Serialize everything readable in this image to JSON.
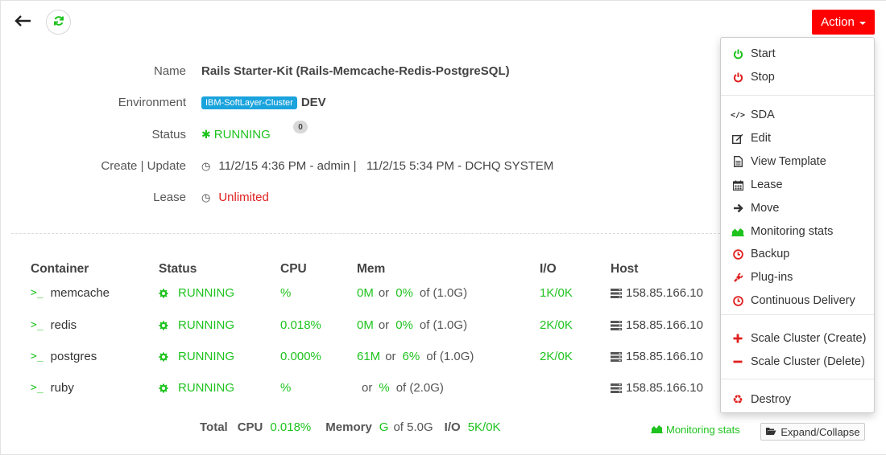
{
  "toolbar": {
    "action_label": "Action"
  },
  "details": {
    "name_label": "Name",
    "name_value": "Rails Starter-Kit (Rails-Memcache-Redis-PostgreSQL)",
    "environment_label": "Environment",
    "environment_tag": "IBM-SoftLayer-Cluster",
    "environment_value": "DEV",
    "status_label": "Status",
    "status_value": "RUNNING",
    "status_badge": "0",
    "create_update_label": "Create | Update",
    "create_update_value": "11/2/15 4:36 PM - admin |   11/2/15 5:34 PM - DCHQ SYSTEM",
    "lease_label": "Lease",
    "lease_value": "Unlimited"
  },
  "table": {
    "headers": [
      "Container",
      "Status",
      "CPU",
      "Mem",
      "I/O",
      "Host"
    ],
    "rows": [
      {
        "name": "memcache",
        "status": "RUNNING",
        "cpu": "%",
        "mem_used": "0M",
        "mem_pct": "0%",
        "mem_total": "of (1.0G)",
        "io": "1K/0K",
        "host": "158.85.166.10"
      },
      {
        "name": "redis",
        "status": "RUNNING",
        "cpu": "0.018%",
        "mem_used": "0M",
        "mem_pct": "0%",
        "mem_total": "of (1.0G)",
        "io": "2K/0K",
        "host": "158.85.166.10"
      },
      {
        "name": "postgres",
        "status": "RUNNING",
        "cpu": "0.000%",
        "mem_used": "61M",
        "mem_pct": "6%",
        "mem_total": "of (1.0G)",
        "io": "2K/0K",
        "host": "158.85.166.10"
      },
      {
        "name": "ruby",
        "status": "RUNNING",
        "cpu": "%",
        "mem_used": "",
        "mem_pct": "%",
        "mem_total": "of (2.0G)",
        "io": "",
        "host": "158.85.166.10"
      }
    ],
    "or_word": "or"
  },
  "footer": {
    "total_label": "Total",
    "cpu_label": "CPU",
    "cpu_value": "0.018%",
    "memory_label": "Memory",
    "memory_value": "G",
    "memory_total": "of 5.0G",
    "io_label": "I/O",
    "io_value": "5K/0K",
    "monitoring_link": "Monitoring stats",
    "expand_label": "Expand/Collapse"
  },
  "menu": {
    "items": [
      {
        "label": "Start",
        "icon": "power-icon",
        "color": "#1ec31e"
      },
      {
        "label": "Stop",
        "icon": "power-icon",
        "color": "#e02020"
      },
      {
        "label": "SDA",
        "icon": "code-icon",
        "color": "#333333"
      },
      {
        "label": "Edit",
        "icon": "edit-icon",
        "color": "#333333"
      },
      {
        "label": "View Template",
        "icon": "file-icon",
        "color": "#333333"
      },
      {
        "label": "Lease",
        "icon": "calendar-icon",
        "color": "#333333"
      },
      {
        "label": "Move",
        "icon": "arrow-right-icon",
        "color": "#333333"
      },
      {
        "label": "Monitoring stats",
        "icon": "area-chart-icon",
        "color": "#1ec31e"
      },
      {
        "label": "Backup",
        "icon": "clock-icon",
        "color": "#e02020"
      },
      {
        "label": "Plug-ins",
        "icon": "plug-icon",
        "color": "#e02020"
      },
      {
        "label": "Continuous Delivery",
        "icon": "clock-icon",
        "color": "#e02020"
      },
      {
        "label": "Scale Cluster (Create)",
        "icon": "plus-icon",
        "color": "#e02020"
      },
      {
        "label": "Scale Cluster (Delete)",
        "icon": "minus-icon",
        "color": "#e02020"
      },
      {
        "label": "Destroy",
        "icon": "recycle-icon",
        "color": "#e02020"
      }
    ]
  },
  "colors": {
    "accent_green": "#1ec31e",
    "action_red": "#ff0000",
    "env_tag_blue": "#1aa3dd"
  }
}
